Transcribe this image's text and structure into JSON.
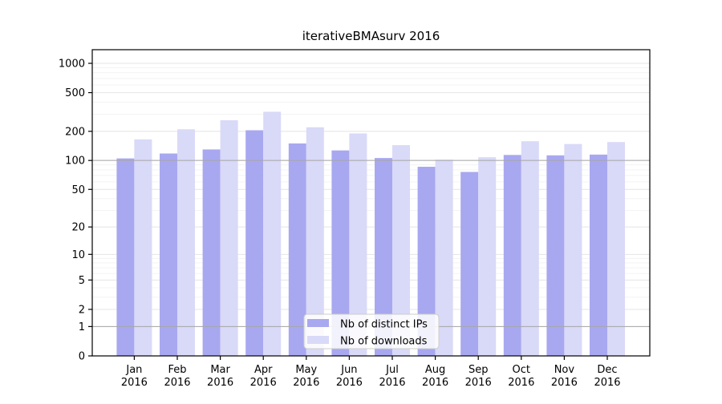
{
  "chart_data": {
    "type": "bar",
    "title": "iterativeBMAsurv 2016",
    "categories": [
      "Jan",
      "Feb",
      "Mar",
      "Apr",
      "May",
      "Jun",
      "Jul",
      "Aug",
      "Sep",
      "Oct",
      "Nov",
      "Dec"
    ],
    "x_year_label": "2016",
    "series": [
      {
        "name": "Nb of distinct IPs",
        "color": "#a8a8f0",
        "values": [
          105,
          118,
          130,
          205,
          150,
          127,
          106,
          86,
          76,
          114,
          113,
          115
        ]
      },
      {
        "name": "Nb of downloads",
        "color": "#d9d9f8",
        "values": [
          165,
          210,
          260,
          318,
          220,
          190,
          144,
          102,
          108,
          158,
          148,
          155
        ]
      }
    ],
    "y_axis": {
      "scale": "log1p",
      "ticks": [
        0,
        1,
        2,
        5,
        10,
        20,
        50,
        100,
        200,
        500,
        1000
      ],
      "minor_ticks": [
        3,
        4,
        6,
        7,
        8,
        9,
        30,
        40,
        60,
        70,
        80,
        90,
        300,
        400,
        600,
        700,
        800,
        900
      ],
      "reference_lines": [
        1,
        100
      ],
      "top_value": 1385
    },
    "legend": {
      "labels": [
        "Nb of distinct IPs",
        "Nb of downloads"
      ]
    },
    "grid": true
  },
  "colors": {
    "background": "#ffffff",
    "axis": "#000000",
    "major_grid": "#e4e4e4",
    "minor_grid": "#f3f3f3",
    "reference_line": "#a6a6a6",
    "legend_border": "#cccccc",
    "text": "#000000"
  }
}
